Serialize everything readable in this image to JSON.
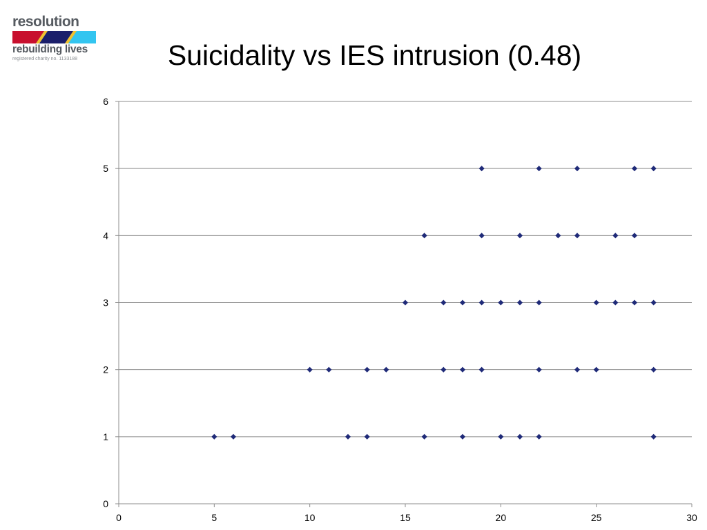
{
  "logo": {
    "name": "resolution",
    "tagline": "rebuilding lives",
    "charity": "registered charity no. 1133188",
    "colors": {
      "red": "#c8102e",
      "navy": "#1b1f6b",
      "cyan": "#33c5f0",
      "gold": "#f2c12e",
      "text": "#555a60"
    }
  },
  "chart_data": {
    "type": "scatter",
    "title": "Suicidality vs IES intrusion (0.48)",
    "xlabel": "",
    "ylabel": "",
    "xlim": [
      0,
      30
    ],
    "ylim": [
      0,
      6
    ],
    "x_ticks": [
      0,
      5,
      10,
      15,
      20,
      25,
      30
    ],
    "y_ticks": [
      0,
      1,
      2,
      3,
      4,
      5,
      6
    ],
    "grid": "horizontal",
    "marker": "diamond",
    "marker_color": "#1f2a78",
    "points": [
      [
        5,
        1
      ],
      [
        6,
        1
      ],
      [
        12,
        1
      ],
      [
        13,
        1
      ],
      [
        16,
        1
      ],
      [
        18,
        1
      ],
      [
        20,
        1
      ],
      [
        21,
        1
      ],
      [
        22,
        1
      ],
      [
        28,
        1
      ],
      [
        10,
        2
      ],
      [
        11,
        2
      ],
      [
        13,
        2
      ],
      [
        14,
        2
      ],
      [
        17,
        2
      ],
      [
        18,
        2
      ],
      [
        19,
        2
      ],
      [
        22,
        2
      ],
      [
        24,
        2
      ],
      [
        25,
        2
      ],
      [
        28,
        2
      ],
      [
        15,
        3
      ],
      [
        17,
        3
      ],
      [
        18,
        3
      ],
      [
        19,
        3
      ],
      [
        20,
        3
      ],
      [
        21,
        3
      ],
      [
        22,
        3
      ],
      [
        25,
        3
      ],
      [
        26,
        3
      ],
      [
        27,
        3
      ],
      [
        28,
        3
      ],
      [
        16,
        4
      ],
      [
        19,
        4
      ],
      [
        21,
        4
      ],
      [
        23,
        4
      ],
      [
        24,
        4
      ],
      [
        26,
        4
      ],
      [
        27,
        4
      ],
      [
        19,
        5
      ],
      [
        22,
        5
      ],
      [
        24,
        5
      ],
      [
        27,
        5
      ],
      [
        28,
        5
      ]
    ]
  }
}
